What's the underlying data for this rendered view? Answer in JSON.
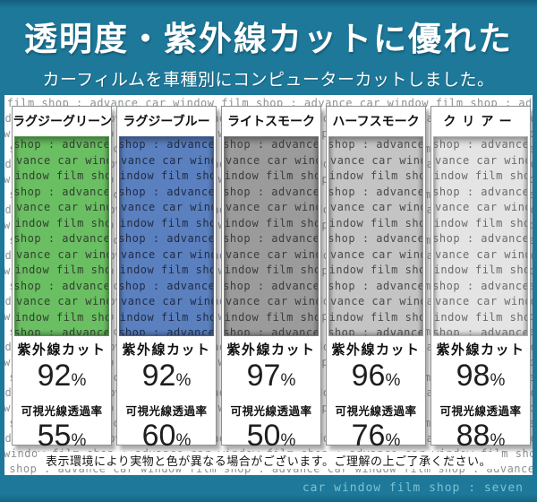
{
  "header": {
    "title": "透明度・紫外線カットに優れた",
    "subtitle": "カーフィルムを車種別にコンピューターカットしました。"
  },
  "watermark": {
    "text": "advance car window film shop : "
  },
  "labels": {
    "uv": "紫外線カット",
    "vlt": "可視光線透過率",
    "pct": "%"
  },
  "panels": [
    {
      "name": "ラグジーグリーン",
      "film_color": "#6abf62",
      "film_text_color": "#31402f",
      "uv_value": "92",
      "vlt_value": "55"
    },
    {
      "name": "ラグジーブルー",
      "film_color": "#5b80bf",
      "film_text_color": "#1f2b45",
      "uv_value": "92",
      "vlt_value": "60"
    },
    {
      "name": "ライトスモーク",
      "film_color": "#9b9b9b",
      "film_text_color": "#3c3c3c",
      "uv_value": "97",
      "vlt_value": "50"
    },
    {
      "name": "ハーフスモーク",
      "film_color": "#c4c4c4",
      "film_text_color": "#4a4a4a",
      "uv_value": "96",
      "vlt_value": "76"
    },
    {
      "name": "クリアー",
      "film_color": "#e4e4e4",
      "film_text_color": "#6b6b6b",
      "uv_value": "98",
      "vlt_value": "88"
    }
  ],
  "disclaimer": "表示環境により実物と色が異なる場合がございます。ご理解の上ご了承ください。",
  "footer": {
    "credit": "car window film shop : seven"
  },
  "colors": {
    "page_background": "#1d7899",
    "sheet_background": "#ffffff",
    "watermark_text": "#8b9196",
    "credit_text": "#79c3d8"
  }
}
